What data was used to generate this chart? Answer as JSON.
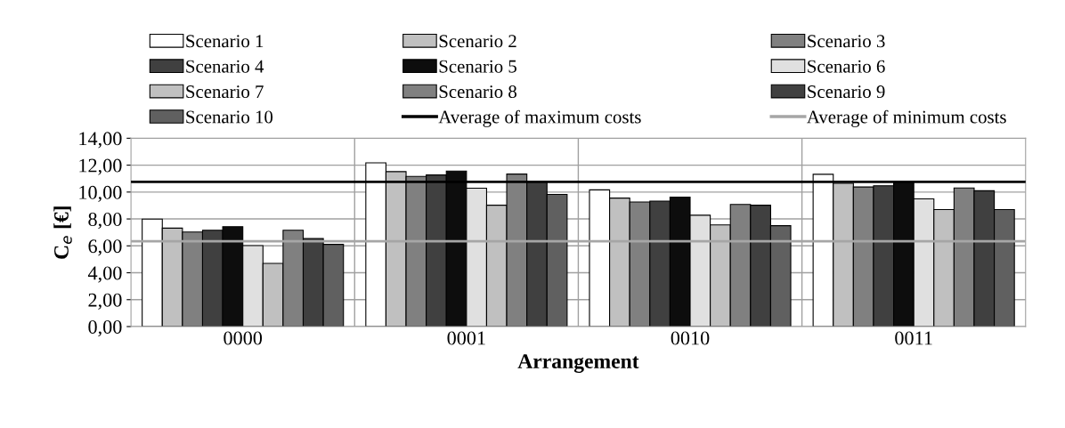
{
  "chart_data": {
    "type": "bar",
    "xlabel": "Arrangement",
    "ylabel": "C$_{e}$ [€]",
    "categories": [
      "0000",
      "0001",
      "0010",
      "0011"
    ],
    "series": [
      {
        "name": "Scenario 1",
        "color": "#ffffff",
        "values": [
          7.99,
          12.17,
          10.16,
          11.32
        ]
      },
      {
        "name": "Scenario 2",
        "color": "#c0c0c0",
        "values": [
          7.32,
          11.52,
          9.55,
          10.65
        ]
      },
      {
        "name": "Scenario 3",
        "color": "#808080",
        "values": [
          7.03,
          11.16,
          9.26,
          10.38
        ]
      },
      {
        "name": "Scenario 4",
        "color": "#404040",
        "values": [
          7.16,
          11.27,
          9.33,
          10.47
        ]
      },
      {
        "name": "Scenario 5",
        "color": "#0d0d0d",
        "values": [
          7.43,
          11.56,
          9.62,
          10.72
        ]
      },
      {
        "name": "Scenario 6",
        "color": "#e0e0e0",
        "values": [
          6.02,
          10.29,
          8.28,
          9.49
        ]
      },
      {
        "name": "Scenario 7",
        "color": "#c0c0c0",
        "values": [
          4.7,
          9.02,
          7.56,
          8.7
        ]
      },
      {
        "name": "Scenario 8",
        "color": "#808080",
        "values": [
          7.16,
          11.34,
          9.08,
          10.3
        ]
      },
      {
        "name": "Scenario 9",
        "color": "#404040",
        "values": [
          6.54,
          10.76,
          9.02,
          10.1
        ]
      },
      {
        "name": "Scenario 10",
        "color": "#606060",
        "values": [
          6.11,
          9.82,
          7.5,
          8.7
        ]
      }
    ],
    "ref_lines": [
      {
        "axis": "y",
        "value": 10.76,
        "label": "Average of maximum costs",
        "color": "#000000"
      },
      {
        "axis": "y",
        "value": 6.34,
        "label": "Average of minimum costs",
        "color": "#a6a6a6"
      }
    ],
    "ylim": [
      0,
      14
    ],
    "yticks": [
      {
        "value": 0,
        "label": "0,00"
      },
      {
        "value": 2,
        "label": "2,00"
      },
      {
        "value": 4,
        "label": "4,00"
      },
      {
        "value": 6,
        "label": "6,00"
      },
      {
        "value": 8,
        "label": "8,00"
      },
      {
        "value": 10,
        "label": "10,00"
      },
      {
        "value": 12,
        "label": "12,00"
      },
      {
        "value": 14,
        "label": "14,00"
      }
    ],
    "grid": true,
    "legend": "top"
  }
}
